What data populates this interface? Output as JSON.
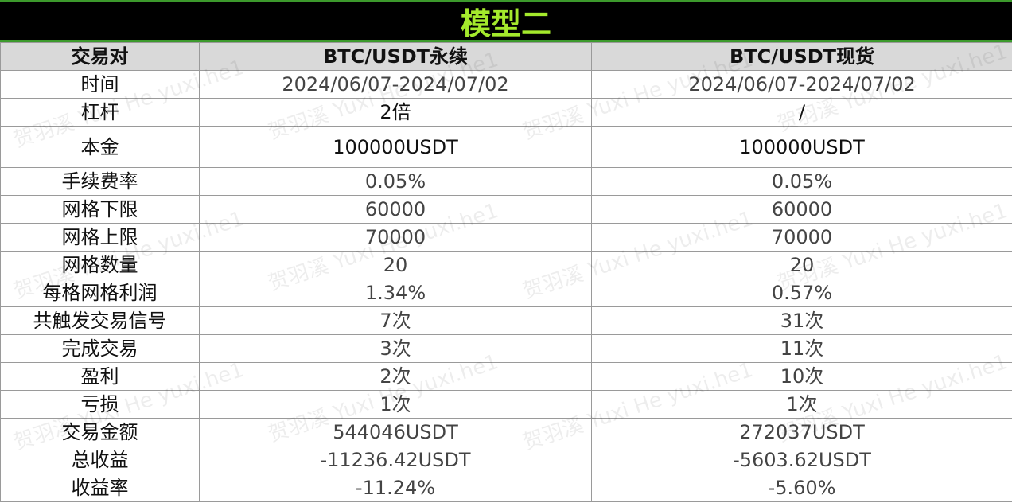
{
  "title": "模型二",
  "watermark": "贺羽溪 Yuxi He yuxi.he1",
  "colors": {
    "title_bg": "#000000",
    "title_text": "#a4e92c",
    "border_accent": "#3c9a2c",
    "header_bg": "#d9d9d9"
  },
  "header": [
    "交易对",
    "BTC/USDT永续",
    "BTC/USDT现货"
  ],
  "rows": [
    [
      "时间",
      "2024/06/07-2024/07/02",
      "2024/06/07-2024/07/02"
    ],
    [
      "杠杆",
      "2倍",
      "/"
    ],
    [
      "本金",
      "100000USDT",
      "100000USDT"
    ],
    [
      "手续费率",
      "0.05%",
      "0.05%"
    ],
    [
      "网格下限",
      "60000",
      "60000"
    ],
    [
      "网格上限",
      "70000",
      "70000"
    ],
    [
      "网格数量",
      "20",
      "20"
    ],
    [
      "每格网格利润",
      "1.34%",
      "0.57%"
    ],
    [
      "共触发交易信号",
      "7次",
      "31次"
    ],
    [
      "完成交易",
      "3次",
      "11次"
    ],
    [
      "盈利",
      "2次",
      "10次"
    ],
    [
      "亏损",
      "1次",
      "1次"
    ],
    [
      "交易金额",
      "544046USDT",
      "272037USDT"
    ],
    [
      "总收益",
      "-11236.42USDT",
      "-5603.62USDT"
    ],
    [
      "收益率",
      "-11.24%",
      "-5.60%"
    ]
  ]
}
